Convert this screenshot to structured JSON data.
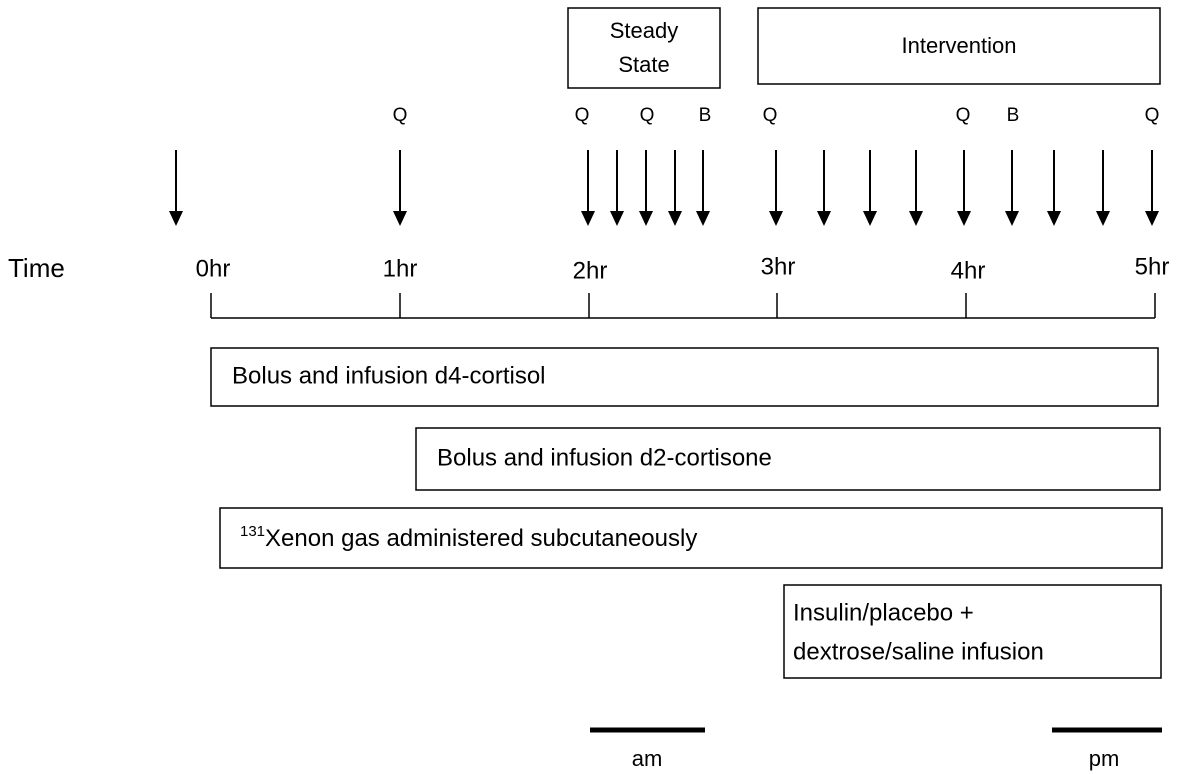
{
  "phases": [
    {
      "label_lines": [
        "Steady",
        "State"
      ]
    },
    {
      "label": "Intervention"
    }
  ],
  "samples": [
    "Q",
    "Q",
    "Q",
    "B",
    "Q",
    "Q",
    "B",
    "Q"
  ],
  "axis": {
    "label": "Time",
    "ticks": [
      "0hr",
      "1hr",
      "2hr",
      "3hr",
      "4hr",
      "5hr"
    ]
  },
  "infusions": [
    {
      "label": "Bolus and infusion d4-cortisol"
    },
    {
      "label": "Bolus and infusion d2-cortisone"
    },
    {
      "superscript": "131",
      "label": "Xenon gas administered subcutaneously"
    },
    {
      "label_lines": [
        "Insulin/placebo +",
        "dextrose/saline infusion"
      ]
    }
  ],
  "scale": [
    "am",
    "pm"
  ]
}
